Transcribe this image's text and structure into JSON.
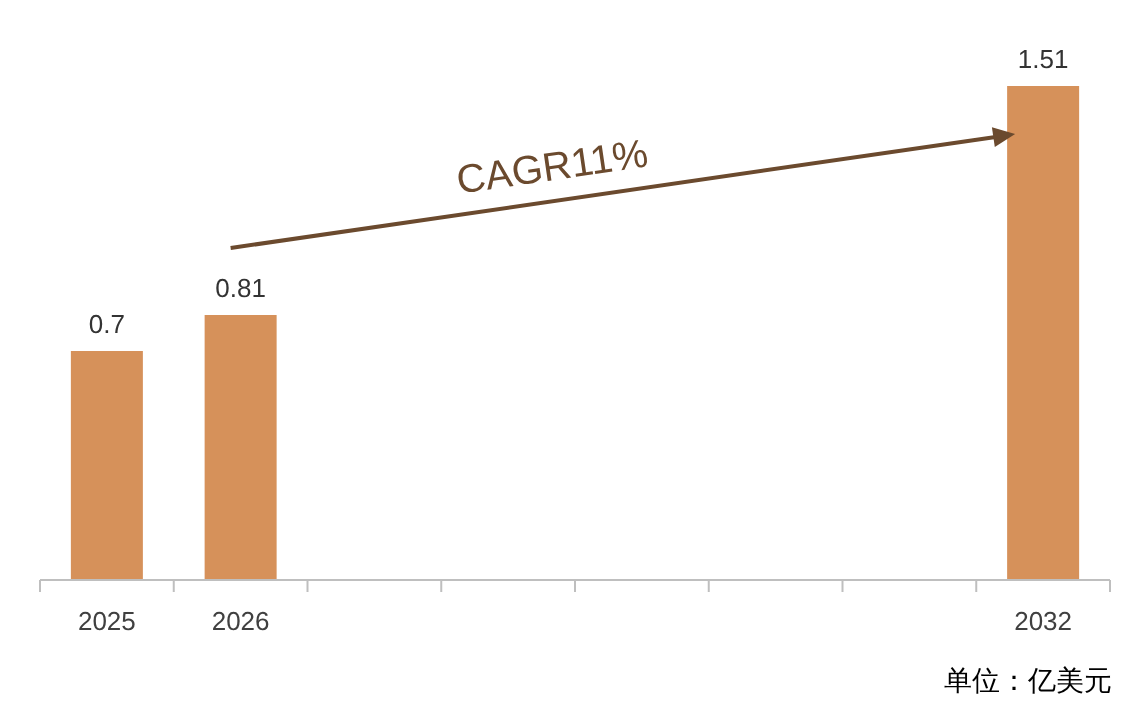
{
  "chart_data": {
    "type": "bar",
    "categories": [
      "2025",
      "2026",
      null,
      null,
      null,
      null,
      null,
      "2032"
    ],
    "values": [
      0.7,
      0.81,
      null,
      null,
      null,
      null,
      null,
      1.51
    ],
    "color": "#d6915a",
    "data_labels": true,
    "annotations": [
      "CAGR11%",
      "单位：亿美元"
    ]
  }
}
